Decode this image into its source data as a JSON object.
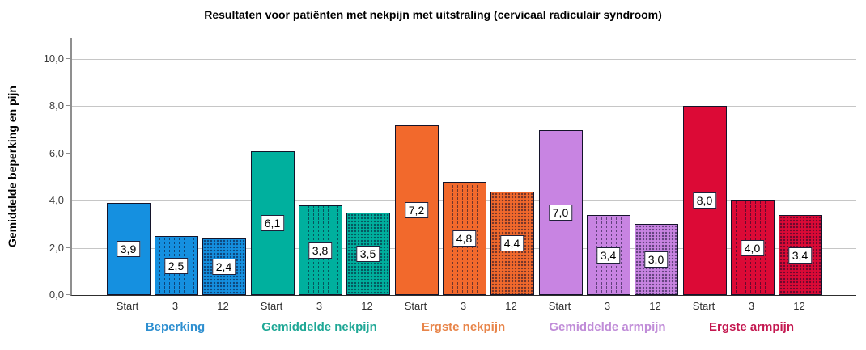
{
  "title": "Resultaten voor patiënten met nekpijn met uitstraling (cervicaal radiculair syndroom)",
  "y_axis": {
    "label": "Gemiddelde beperking en pijn",
    "tick_labels": [
      "0,0",
      "2,0",
      "4,0",
      "6,0",
      "8,0",
      "10,0"
    ],
    "tick_values": [
      0,
      2,
      4,
      6,
      8,
      10
    ]
  },
  "chart_data": {
    "type": "bar",
    "title": "Resultaten voor patiënten met nekpijn met uitstraling (cervicaal radiculair syndroom)",
    "xlabel": "",
    "ylabel": "Gemiddelde beperking en pijn",
    "ylim": [
      0,
      10.9
    ],
    "grid": "horizontal gridlines every 2.0",
    "legend_position": "none",
    "categories": [
      "Start",
      "3",
      "12"
    ],
    "bar_patterns": {
      "Start": "solid",
      "3": "vertical dashed dot columns",
      "12": "dense dot grid"
    },
    "groups": [
      {
        "name": "Beperking",
        "color": "#1590E0",
        "label_color": "#2E8FD0",
        "values": [
          3.9,
          2.5,
          2.4
        ],
        "value_labels": [
          "3,9",
          "2,5",
          "2,4"
        ]
      },
      {
        "name": "Gemiddelde nekpijn",
        "color": "#00B09E",
        "label_color": "#1FA896",
        "values": [
          6.1,
          3.8,
          3.5
        ],
        "value_labels": [
          "6,1",
          "3,8",
          "3,5"
        ]
      },
      {
        "name": "Ergste nekpijn",
        "color": "#F2692C",
        "label_color": "#E8854A",
        "values": [
          7.2,
          4.8,
          4.4
        ],
        "value_labels": [
          "7,2",
          "4,8",
          "4,4"
        ]
      },
      {
        "name": "Gemiddelde armpijn",
        "color": "#C884E2",
        "label_color": "#C08CD8",
        "values": [
          7.0,
          3.4,
          3.0
        ],
        "value_labels": [
          "7,0",
          "3,4",
          "3,0"
        ]
      },
      {
        "name": "Ergste armpijn",
        "color": "#DC0A36",
        "label_color": "#C41850",
        "values": [
          8.0,
          4.0,
          3.4
        ],
        "value_labels": [
          "8,0",
          "4,0",
          "3,4"
        ]
      }
    ]
  }
}
